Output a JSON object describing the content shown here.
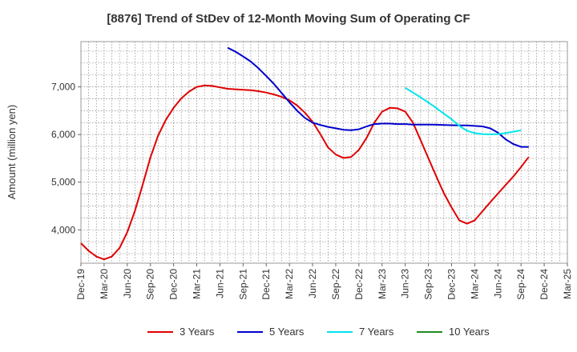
{
  "chart_data": {
    "type": "line",
    "title": "[8876]  Trend of StDev of 12-Month Moving Sum of Operating CF",
    "xlabel": "",
    "ylabel": "Amount (million yen)",
    "x_tick_labels": [
      "Dec-19",
      "Mar-20",
      "Jun-20",
      "Sep-20",
      "Dec-20",
      "Mar-21",
      "Jun-21",
      "Sep-21",
      "Dec-21",
      "Mar-22",
      "Jun-22",
      "Sep-22",
      "Dec-22",
      "Mar-23",
      "Jun-23",
      "Sep-23",
      "Dec-23",
      "Mar-24",
      "Jun-24",
      "Sep-24",
      "Dec-24",
      "Mar-25"
    ],
    "y_ticks": [
      4000,
      5000,
      6000,
      7000
    ],
    "y_tick_labels": [
      "4,000",
      "5,000",
      "6,000",
      "7,000"
    ],
    "ylim": [
      3300,
      7950
    ],
    "grid": true,
    "legend_position": "bottom",
    "series": [
      {
        "name": "3 Years",
        "color": "#e00000",
        "points": [
          [
            0,
            3720
          ],
          [
            1,
            3560
          ],
          [
            2,
            3440
          ],
          [
            3,
            3380
          ],
          [
            4,
            3440
          ],
          [
            5,
            3620
          ],
          [
            6,
            3950
          ],
          [
            7,
            4400
          ],
          [
            8,
            4950
          ],
          [
            9,
            5520
          ],
          [
            10,
            5980
          ],
          [
            11,
            6310
          ],
          [
            12,
            6560
          ],
          [
            13,
            6760
          ],
          [
            14,
            6900
          ],
          [
            15,
            7000
          ],
          [
            16,
            7030
          ],
          [
            17,
            7020
          ],
          [
            18,
            6990
          ],
          [
            19,
            6960
          ],
          [
            20,
            6950
          ],
          [
            21,
            6940
          ],
          [
            22,
            6930
          ],
          [
            23,
            6910
          ],
          [
            24,
            6880
          ],
          [
            25,
            6840
          ],
          [
            26,
            6790
          ],
          [
            27,
            6720
          ],
          [
            28,
            6610
          ],
          [
            29,
            6460
          ],
          [
            30,
            6270
          ],
          [
            31,
            6010
          ],
          [
            32,
            5730
          ],
          [
            33,
            5580
          ],
          [
            34,
            5510
          ],
          [
            35,
            5530
          ],
          [
            36,
            5680
          ],
          [
            37,
            5930
          ],
          [
            38,
            6250
          ],
          [
            39,
            6480
          ],
          [
            40,
            6560
          ],
          [
            41,
            6550
          ],
          [
            42,
            6480
          ],
          [
            43,
            6250
          ],
          [
            44,
            5880
          ],
          [
            45,
            5500
          ],
          [
            46,
            5130
          ],
          [
            47,
            4770
          ],
          [
            48,
            4470
          ],
          [
            49,
            4200
          ],
          [
            50,
            4130
          ],
          [
            51,
            4200
          ],
          [
            52,
            4390
          ],
          [
            53,
            4580
          ],
          [
            54,
            4760
          ],
          [
            55,
            4940
          ],
          [
            56,
            5120
          ],
          [
            57,
            5320
          ],
          [
            58,
            5530
          ]
        ]
      },
      {
        "name": "5 Years",
        "color": "#0000cc",
        "points": [
          [
            19,
            7820
          ],
          [
            20,
            7740
          ],
          [
            21,
            7640
          ],
          [
            22,
            7530
          ],
          [
            23,
            7390
          ],
          [
            24,
            7230
          ],
          [
            25,
            7060
          ],
          [
            26,
            6870
          ],
          [
            27,
            6680
          ],
          [
            28,
            6500
          ],
          [
            29,
            6350
          ],
          [
            30,
            6250
          ],
          [
            31,
            6200
          ],
          [
            32,
            6160
          ],
          [
            33,
            6130
          ],
          [
            34,
            6100
          ],
          [
            35,
            6090
          ],
          [
            36,
            6110
          ],
          [
            37,
            6170
          ],
          [
            38,
            6220
          ],
          [
            39,
            6230
          ],
          [
            40,
            6230
          ],
          [
            41,
            6220
          ],
          [
            42,
            6220
          ],
          [
            43,
            6210
          ],
          [
            44,
            6210
          ],
          [
            45,
            6210
          ],
          [
            46,
            6205
          ],
          [
            47,
            6200
          ],
          [
            48,
            6195
          ],
          [
            49,
            6190
          ],
          [
            50,
            6190
          ],
          [
            51,
            6180
          ],
          [
            52,
            6170
          ],
          [
            53,
            6130
          ],
          [
            54,
            6040
          ],
          [
            55,
            5900
          ],
          [
            56,
            5800
          ],
          [
            57,
            5740
          ],
          [
            58,
            5740
          ]
        ]
      },
      {
        "name": "7 Years",
        "color": "#00e5ee",
        "points": [
          [
            42,
            6980
          ],
          [
            43,
            6880
          ],
          [
            44,
            6780
          ],
          [
            45,
            6670
          ],
          [
            46,
            6560
          ],
          [
            47,
            6440
          ],
          [
            48,
            6320
          ],
          [
            49,
            6180
          ],
          [
            50,
            6080
          ],
          [
            51,
            6030
          ],
          [
            52,
            6010
          ],
          [
            53,
            6005
          ],
          [
            54,
            6010
          ],
          [
            55,
            6030
          ],
          [
            56,
            6060
          ],
          [
            57,
            6090
          ]
        ]
      },
      {
        "name": "10 Years",
        "color": "#228b22",
        "points": []
      }
    ]
  }
}
